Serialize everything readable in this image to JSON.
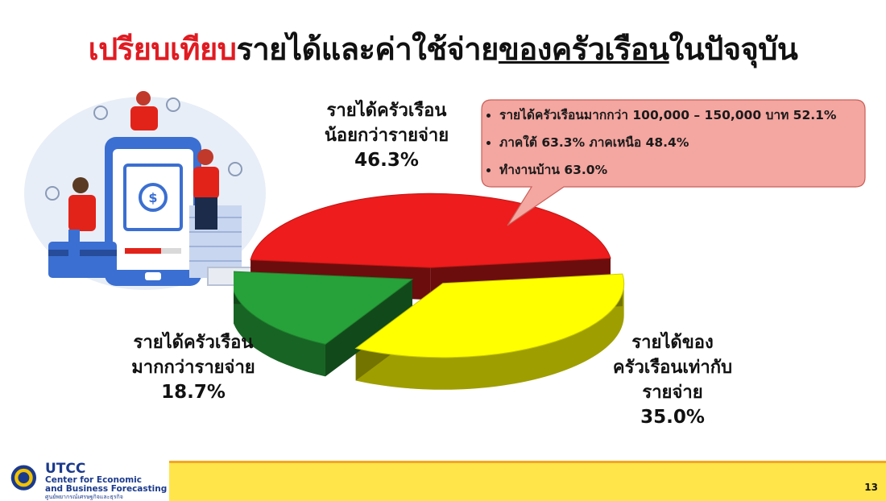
{
  "title": {
    "part1": "เปรียบเทียบ",
    "part2": "รายได้และค่าใช้จ่าย",
    "part3": "ของครัวเรือน",
    "part4": "ในปัจจุบัน"
  },
  "chart_data": {
    "type": "pie",
    "style": "3d-exploded",
    "slices": [
      {
        "label": "รายได้ครัวเรือนน้อยกว่ารายจ่าย",
        "value": 46.3,
        "color": "#ee1c1c"
      },
      {
        "label": "รายได้ของครัวเรือนเท่ากับรายจ่าย",
        "value": 35.0,
        "color": "#ffff00"
      },
      {
        "label": "รายได้ครัวเรือนมากกว่ารายจ่าย",
        "value": 18.7,
        "color": "#27a23a"
      }
    ]
  },
  "labels": {
    "less": {
      "line1": "รายได้ครัวเรือน",
      "line2": "น้อยกว่ารายจ่าย",
      "pct": "46.3%"
    },
    "equal": {
      "line1": "รายได้ของ",
      "line2": "ครัวเรือนเท่ากับ",
      "line3": "รายจ่าย",
      "pct": "35.0%"
    },
    "more": {
      "line1": "รายได้ครัวเรือน",
      "line2": "มากกว่ารายจ่าย",
      "pct": "18.7%"
    }
  },
  "callout": {
    "items": [
      "รายได้ครัวเรือนมากกว่า 100,000 – 150,000 บาท 52.1%",
      "ภาคใต้ 63.3% ภาคเหนือ 48.4%",
      "ทำงานบ้าน 63.0%"
    ],
    "fill_color": "#f4a6a0"
  },
  "footer": {
    "org_short": "UTCC",
    "org_line1": "Center for Economic",
    "org_line2": "and Business Forecasting",
    "org_thai": "ศูนย์พยากรณ์เศรษฐกิจและธุรกิจ",
    "page_number": "13"
  },
  "illustration": {
    "icon": "people-money-phone-illustration"
  }
}
